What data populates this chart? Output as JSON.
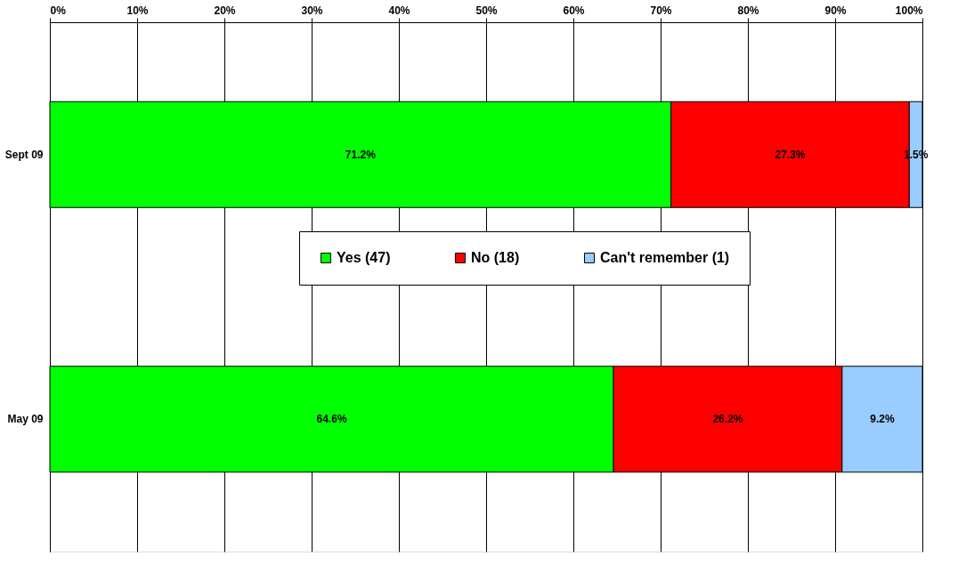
{
  "chart_data": {
    "type": "bar",
    "orientation": "horizontal",
    "stacked": true,
    "categories": [
      "Sept 09",
      "May 09"
    ],
    "series": [
      {
        "name": "Yes (47)",
        "color": "#00ff00",
        "values": [
          71.2,
          64.6
        ],
        "value_labels": [
          "71.2%",
          "64.6%"
        ]
      },
      {
        "name": "No (18)",
        "color": "#ff0000",
        "values": [
          27.3,
          26.2
        ],
        "value_labels": [
          "27.3%",
          "26.2%"
        ]
      },
      {
        "name": "Can't remember (1)",
        "color": "#99ccff",
        "values": [
          1.5,
          9.2
        ],
        "value_labels": [
          "1.5%",
          "9.2%"
        ]
      }
    ],
    "xlim": [
      0,
      100
    ],
    "xticks": [
      {
        "value": 0,
        "label": "0%"
      },
      {
        "value": 10,
        "label": "10%"
      },
      {
        "value": 20,
        "label": "20%"
      },
      {
        "value": 30,
        "label": "30%"
      },
      {
        "value": 40,
        "label": "40%"
      },
      {
        "value": 50,
        "label": "50%"
      },
      {
        "value": 60,
        "label": "60%"
      },
      {
        "value": 70,
        "label": "70%"
      },
      {
        "value": 80,
        "label": "80%"
      },
      {
        "value": 90,
        "label": "90%"
      },
      {
        "value": 100,
        "label": "100%"
      }
    ],
    "grid": "x",
    "legend": "center"
  }
}
